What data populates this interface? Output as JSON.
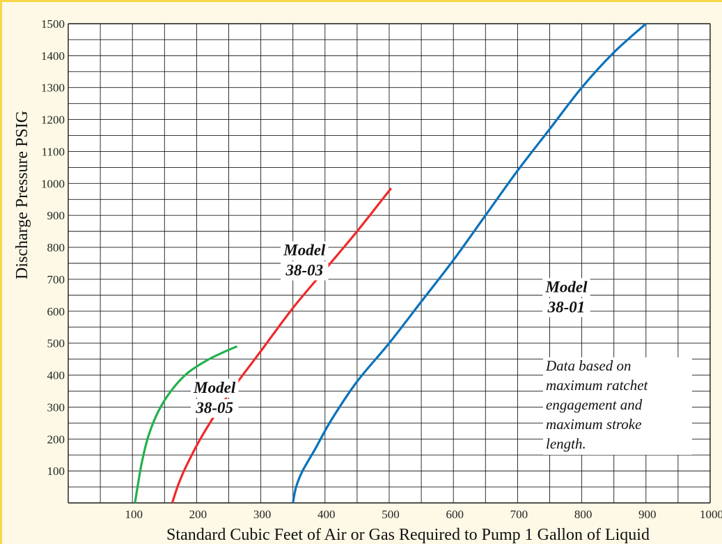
{
  "chart_data": {
    "type": "line",
    "title": "",
    "xlabel": "Standard Cubic Feet of Air or Gas Required to Pump 1 Gallon of Liquid",
    "ylabel": "Discharge Pressure PSIG",
    "xlim": [
      0,
      1000
    ],
    "ylim": [
      0,
      1500
    ],
    "x_ticks": [
      "100",
      "200",
      "300",
      "400",
      "500",
      "600",
      "700",
      "800",
      "900",
      "1000"
    ],
    "y_ticks": [
      "100",
      "200",
      "300",
      "400",
      "500",
      "600",
      "700",
      "800",
      "900",
      "1000",
      "1100",
      "1200",
      "1300",
      "1400",
      "1500"
    ],
    "grid": true,
    "series": [
      {
        "name": "Model 38-05",
        "label_lines": [
          "Model",
          "38-05"
        ],
        "color": "#22b14c",
        "points": [
          [
            104,
            0
          ],
          [
            108,
            50
          ],
          [
            115,
            130
          ],
          [
            125,
            210
          ],
          [
            140,
            285
          ],
          [
            160,
            350
          ],
          [
            185,
            405
          ],
          [
            215,
            445
          ],
          [
            240,
            470
          ],
          [
            263,
            490
          ]
        ]
      },
      {
        "name": "Model 38-03",
        "label_lines": [
          "Model",
          "38-03"
        ],
        "color": "#ee2a2a",
        "points": [
          [
            162,
            0
          ],
          [
            172,
            60
          ],
          [
            185,
            120
          ],
          [
            210,
            215
          ],
          [
            250,
            340
          ],
          [
            300,
            475
          ],
          [
            350,
            610
          ],
          [
            400,
            730
          ],
          [
            450,
            850
          ],
          [
            503,
            985
          ]
        ]
      },
      {
        "name": "Model 38-01",
        "label_lines": [
          "Model",
          "38-01"
        ],
        "color": "#0a72bb",
        "points": [
          [
            350,
            0
          ],
          [
            355,
            50
          ],
          [
            365,
            100
          ],
          [
            385,
            170
          ],
          [
            410,
            260
          ],
          [
            450,
            380
          ],
          [
            500,
            500
          ],
          [
            550,
            630
          ],
          [
            600,
            760
          ],
          [
            650,
            900
          ],
          [
            700,
            1040
          ],
          [
            750,
            1170
          ],
          [
            800,
            1300
          ],
          [
            850,
            1410
          ],
          [
            900,
            1500
          ]
        ]
      }
    ],
    "annotation": [
      "Data based on",
      "maximum ratchet",
      "engagement and",
      "maximum stroke",
      "length."
    ]
  }
}
